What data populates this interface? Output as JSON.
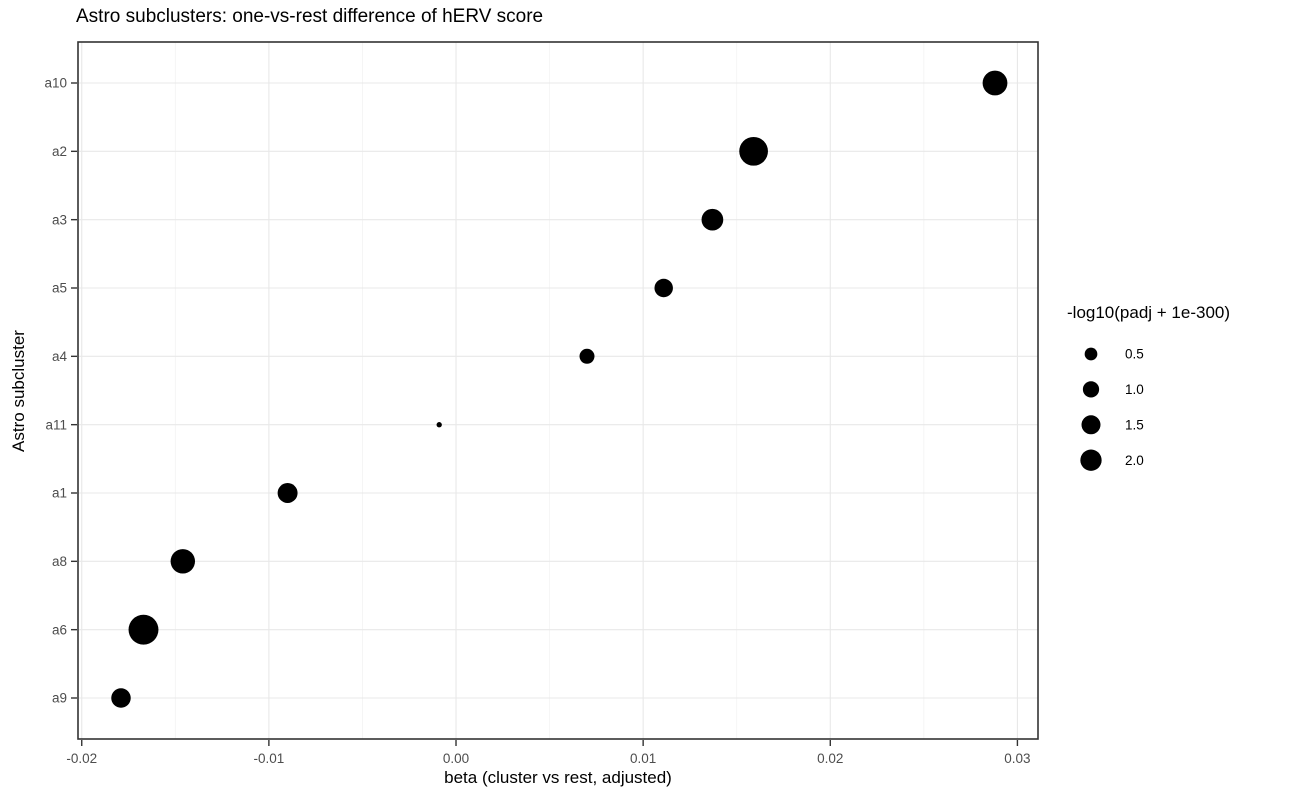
{
  "title": "Astro subclusters: one-vs-rest difference of hERV score",
  "colors": {
    "background": "#ffffff",
    "point": "#000000",
    "grid_major": "#e8e8e8",
    "grid_minor": "#f4f4f4",
    "panel_border": "#333333",
    "tick_mark": "#333333",
    "tick_label": "#4d4d4d",
    "title_text": "#000000",
    "axis_title": "#000000",
    "legend_text": "#000000"
  },
  "chart_data": {
    "type": "scatter",
    "title": "Astro subclusters: one-vs-rest difference of hERV score",
    "xlabel": "beta (cluster vs rest, adjusted)",
    "ylabel": "Astro subcluster",
    "x_ticks": [
      -0.02,
      -0.01,
      0,
      0.01,
      0.02,
      0.03
    ],
    "x_tick_labels": [
      "-0.02",
      "-0.01",
      "0.00",
      "0.01",
      "0.02",
      "0.03"
    ],
    "x_minor_ticks": [
      -0.015,
      -0.005,
      0.005,
      0.015,
      0.025
    ],
    "xlim": [
      -0.0202,
      0.0311
    ],
    "grid": true,
    "legend_position": "right",
    "categories": [
      "a10",
      "a2",
      "a3",
      "a5",
      "a4",
      "a11",
      "a1",
      "a8",
      "a6",
      "a9"
    ],
    "points": [
      {
        "cluster": "a10",
        "beta": 0.0288,
        "neg_log10_padj": 2.9
      },
      {
        "cluster": "a2",
        "beta": 0.0159,
        "neg_log10_padj": 4.1
      },
      {
        "cluster": "a3",
        "beta": 0.0137,
        "neg_log10_padj": 2.1
      },
      {
        "cluster": "a5",
        "beta": 0.0111,
        "neg_log10_padj": 1.4
      },
      {
        "cluster": "a4",
        "beta": 0.007,
        "neg_log10_padj": 0.8
      },
      {
        "cluster": "a11",
        "beta": -0.0009,
        "neg_log10_padj": 0.01
      },
      {
        "cluster": "a1",
        "beta": -0.009,
        "neg_log10_padj": 1.7
      },
      {
        "cluster": "a8",
        "beta": -0.0146,
        "neg_log10_padj": 2.8
      },
      {
        "cluster": "a6",
        "beta": -0.0167,
        "neg_log10_padj": 4.5
      },
      {
        "cluster": "a9",
        "beta": -0.0179,
        "neg_log10_padj": 1.6
      }
    ],
    "size_legend": {
      "title": "-log10(padj + 1e-300)",
      "values": [
        0.5,
        1.0,
        1.5,
        2.0
      ],
      "labels": [
        "0.5",
        "1.0",
        "1.5",
        "2.0"
      ]
    }
  }
}
